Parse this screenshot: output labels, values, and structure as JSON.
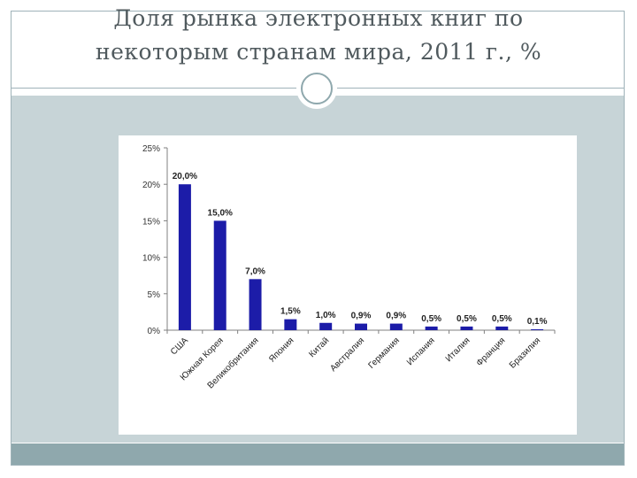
{
  "slide": {
    "title_line1": "Доля рынка электронных книг по",
    "title_line2": "некоторым странам мира, 2011 г., %"
  },
  "colors": {
    "bar": "#1c1ca8",
    "panel": "#c7d4d7",
    "footer": "#8fa8ad",
    "axis": "#808080"
  },
  "chart_data": {
    "type": "bar",
    "title": "",
    "xlabel": "",
    "ylabel": "",
    "categories": [
      "США",
      "Южная Корея",
      "Великобритания",
      "Япония",
      "Китай",
      "Австралия",
      "Германия",
      "Испания",
      "Италия",
      "Франция",
      "Бразилия"
    ],
    "values": [
      20.0,
      15.0,
      7.0,
      1.5,
      1.0,
      0.9,
      0.9,
      0.5,
      0.5,
      0.5,
      0.1
    ],
    "data_labels": [
      "20,0%",
      "15,0%",
      "7,0%",
      "1,5%",
      "1,0%",
      "0,9%",
      "0,9%",
      "0,5%",
      "0,5%",
      "0,5%",
      "0,1%"
    ],
    "ylim": [
      0,
      25
    ],
    "yticks": [
      0,
      5,
      10,
      15,
      20,
      25
    ],
    "ytick_labels": [
      "0%",
      "5%",
      "10%",
      "15%",
      "20%",
      "25%"
    ],
    "grid": false,
    "legend": "none"
  }
}
